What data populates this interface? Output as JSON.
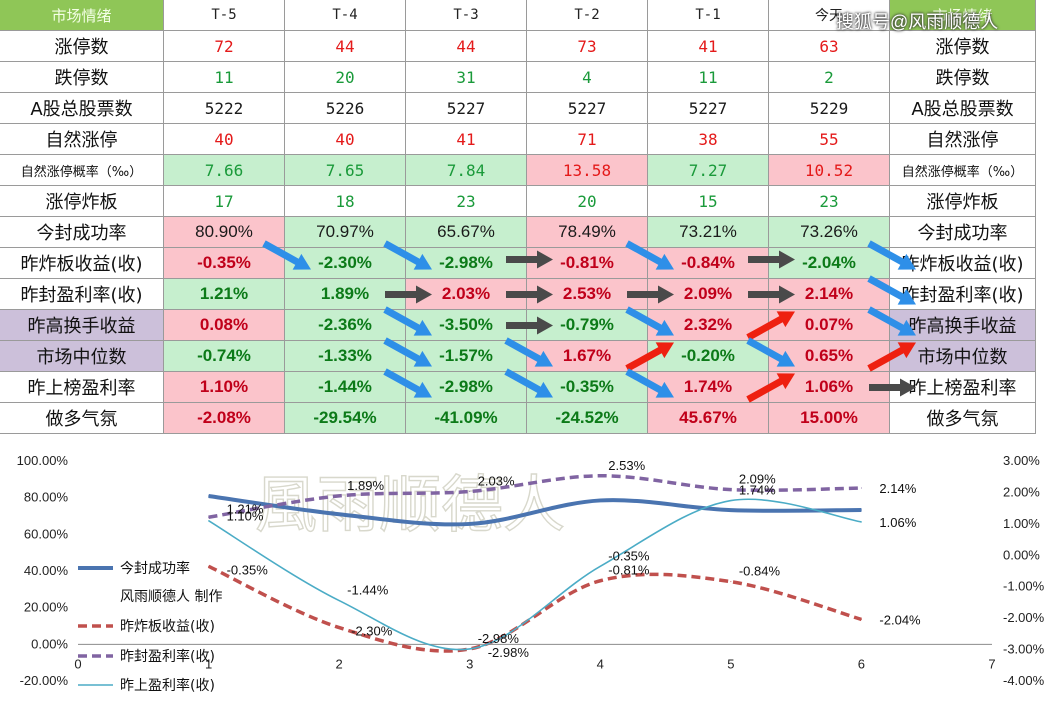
{
  "table": {
    "header": [
      "市场情绪",
      "T-5",
      "T-4",
      "T-3",
      "T-2",
      "T-1",
      "今天",
      "市场情绪"
    ],
    "rows": [
      {
        "name": "涨停数",
        "values": [
          "72",
          "44",
          "44",
          "73",
          "41",
          "63"
        ],
        "kind": "num",
        "color": "red"
      },
      {
        "name": "跌停数",
        "values": [
          "11",
          "20",
          "31",
          "4",
          "11",
          "2"
        ],
        "kind": "num",
        "color": "green"
      },
      {
        "name": "A股总股票数",
        "values": [
          "5222",
          "5226",
          "5227",
          "5227",
          "5227",
          "5229"
        ],
        "kind": "num",
        "color": "black"
      },
      {
        "name": "自然涨停",
        "values": [
          "40",
          "40",
          "41",
          "71",
          "38",
          "55"
        ],
        "kind": "num",
        "color": "red"
      },
      {
        "name": "自然涨停概率（‰）",
        "values": [
          "7.66",
          "7.65",
          "7.84",
          "13.58",
          "7.27",
          "10.52"
        ],
        "kind": "num",
        "small": true,
        "colors": [
          "green",
          "green",
          "green",
          "red",
          "green",
          "red"
        ],
        "bgs": [
          "g",
          "g",
          "g",
          "r",
          "g",
          "r"
        ]
      },
      {
        "name": "涨停炸板",
        "values": [
          "17",
          "18",
          "23",
          "20",
          "15",
          "23"
        ],
        "kind": "num",
        "color": "green"
      },
      {
        "name": "今封成功率",
        "values": [
          "80.90%",
          "70.97%",
          "65.67%",
          "78.49%",
          "73.21%",
          "73.26%"
        ],
        "kind": "plain",
        "bgs": [
          "r",
          "g",
          "g",
          "r",
          "g",
          "g"
        ]
      },
      {
        "name": "昨炸板收益(收)",
        "values": [
          "-0.35%",
          "-2.30%",
          "-2.98%",
          "-0.81%",
          "-0.84%",
          "-2.04%"
        ],
        "kind": "pct",
        "colors": [
          "red",
          "green",
          "green",
          "red",
          "red",
          "green"
        ],
        "bgs": [
          "r",
          "g",
          "g",
          "r",
          "r",
          "g"
        ]
      },
      {
        "name": "昨封盈利率(收)",
        "values": [
          "1.21%",
          "1.89%",
          "2.03%",
          "2.53%",
          "2.09%",
          "2.14%"
        ],
        "kind": "pct",
        "colors": [
          "green",
          "green",
          "red",
          "red",
          "red",
          "red"
        ],
        "bgs": [
          "g",
          "g",
          "r",
          "r",
          "r",
          "r"
        ]
      },
      {
        "name": "昨高换手收益",
        "values": [
          "0.08%",
          "-2.36%",
          "-3.50%",
          "-0.79%",
          "2.32%",
          "0.07%"
        ],
        "kind": "pct",
        "purple": true,
        "colors": [
          "red",
          "green",
          "green",
          "green",
          "red",
          "red"
        ],
        "bgs": [
          "r",
          "g",
          "g",
          "g",
          "r",
          "r"
        ]
      },
      {
        "name": "市场中位数",
        "values": [
          "-0.74%",
          "-1.33%",
          "-1.57%",
          "1.67%",
          "-0.20%",
          "0.65%"
        ],
        "kind": "pct",
        "purple": true,
        "colors": [
          "green",
          "green",
          "green",
          "red",
          "green",
          "red"
        ],
        "bgs": [
          "g",
          "g",
          "g",
          "r",
          "g",
          "r"
        ]
      },
      {
        "name": "昨上榜盈利率",
        "values": [
          "1.10%",
          "-1.44%",
          "-2.98%",
          "-0.35%",
          "1.74%",
          "1.06%"
        ],
        "kind": "pct",
        "colors": [
          "red",
          "green",
          "green",
          "green",
          "red",
          "red"
        ],
        "bgs": [
          "r",
          "g",
          "g",
          "g",
          "r",
          "r"
        ]
      },
      {
        "name": "做多气氛",
        "values": [
          "-2.08%",
          "-29.54%",
          "-41.09%",
          "-24.52%",
          "45.67%",
          "15.00%"
        ],
        "kind": "pct",
        "colors": [
          "red",
          "green",
          "green",
          "green",
          "red",
          "red"
        ],
        "bgs": [
          "r",
          "g",
          "g",
          "g",
          "r",
          "r"
        ]
      }
    ],
    "arrow_trend": [
      [
        "down",
        "down",
        "right",
        "down",
        "right",
        "down"
      ],
      [
        "right",
        "right",
        "right",
        "right",
        "down"
      ],
      [
        "down",
        "right",
        "down",
        "up",
        "down"
      ],
      [
        "down",
        "down",
        "up",
        "down",
        "up"
      ],
      [
        "down",
        "down",
        "down",
        "up",
        "right"
      ]
    ]
  },
  "watermark_top": "搜狐号@风雨顺德人",
  "watermark_chart": "風雨顺德人",
  "colors": {
    "red_text": "#e41a1a",
    "green_text": "#1a9a3a",
    "dark_green_text": "#0c7a18",
    "dark_red_text": "#c0001a",
    "bg_red": "#fbc4cb",
    "bg_green": "#c6efce",
    "bg_purple": "#ccc0da",
    "arrow_blue": "#2e8fe8",
    "arrow_gray": "#4a4a4a",
    "arrow_red": "#ee2010"
  },
  "chart_data": {
    "type": "line",
    "x": [
      1,
      2,
      3,
      4,
      5,
      6
    ],
    "xlim": [
      0,
      7
    ],
    "xticks": [
      "0",
      "1",
      "2",
      "3",
      "4",
      "5",
      "6",
      "7"
    ],
    "left_axis": {
      "ylim": [
        -20,
        100
      ],
      "ticks": [
        "100.00%",
        "80.00%",
        "60.00%",
        "40.00%",
        "20.00%",
        "0.00%",
        "-20.00%"
      ]
    },
    "right_axis": {
      "ylim": [
        -4,
        3
      ],
      "ticks": [
        "3.00%",
        "2.00%",
        "1.00%",
        "0.00%",
        "-1.00%",
        "-2.00%",
        "-3.00%",
        "-4.00%"
      ]
    },
    "series": [
      {
        "name": "今封成功率",
        "axis": "left",
        "values": [
          80.9,
          70.97,
          65.67,
          78.49,
          73.21,
          73.26
        ],
        "color": "#4a74b0",
        "style": "solid-thick",
        "labels": []
      },
      {
        "name": "昨炸板收益(收)",
        "axis": "right",
        "values": [
          -0.35,
          -2.3,
          -2.98,
          -0.81,
          -0.84,
          -2.04
        ],
        "color": "#c0504d",
        "style": "dashed",
        "labels": [
          "-0.35%",
          "-2.30%",
          "-2.98%",
          "-0.81%",
          "-0.84%",
          "-2.04%"
        ]
      },
      {
        "name": "昨封盈利率(收)",
        "axis": "right",
        "values": [
          1.21,
          1.89,
          2.03,
          2.53,
          2.09,
          2.14
        ],
        "color": "#8064a2",
        "style": "dashed",
        "labels": [
          "1.21%",
          "1.89%",
          "2.03%",
          "2.53%",
          "2.09%",
          "2.14%"
        ]
      },
      {
        "name": "昨上盈利率(收)",
        "axis": "right",
        "values": [
          1.1,
          -1.44,
          -2.98,
          -0.35,
          1.74,
          1.06
        ],
        "color": "#4bacc6",
        "style": "solid-thin",
        "labels": [
          "1.10%",
          "-1.44%",
          "-2.98%",
          "-0.35%",
          "1.74%",
          "1.06%"
        ]
      }
    ],
    "legend_extra": "风雨顺德人 制作",
    "legend_position": "left"
  }
}
